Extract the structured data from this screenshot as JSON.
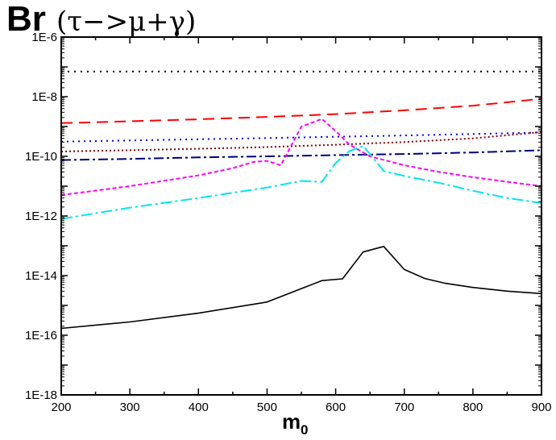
{
  "chart_data": {
    "type": "line",
    "title": "Br",
    "title_suffix": "(τ−>μ+γ)",
    "xlabel": "m",
    "xlabel_subscript": "0",
    "ylabel": "",
    "log_y": true,
    "xlim": [
      200,
      900
    ],
    "ylim": [
      1e-18,
      1e-06
    ],
    "x_ticks": [
      200,
      300,
      400,
      500,
      600,
      700,
      800,
      900
    ],
    "x_tick_labels": [
      "200",
      "300",
      "400",
      "500",
      "600",
      "700",
      "800",
      "900"
    ],
    "y_ticks": [
      1e-18,
      1e-16,
      1e-14,
      1e-12,
      1e-10,
      1e-08,
      1e-06
    ],
    "y_tick_labels": [
      "1E-18",
      "1E-16",
      "1E-14",
      "1E-12",
      "1E-10",
      "1E-8",
      "1E-6"
    ],
    "grid": false,
    "legend": "none",
    "series": [
      {
        "color": "#000000",
        "dash": "2,6",
        "width": 2,
        "x": [
          200,
          900
        ],
        "y": [
          7e-08,
          7e-08
        ]
      },
      {
        "color": "#ff0000",
        "dash": "14,8",
        "width": 2,
        "x": [
          200,
          300,
          400,
          500,
          600,
          700,
          800,
          900
        ],
        "y": [
          1.3e-09,
          1.5e-09,
          1.75e-09,
          2.1e-09,
          2.6e-09,
          3.5e-09,
          5e-09,
          8.5e-09
        ]
      },
      {
        "color": "#0000ff",
        "dash": "2,5",
        "width": 2,
        "x": [
          200,
          300,
          400,
          500,
          600,
          700,
          800,
          900
        ],
        "y": [
          3.1e-10,
          3.4e-10,
          3.75e-10,
          4.1e-10,
          4.55e-10,
          5e-10,
          5.6e-10,
          6.3e-10
        ]
      },
      {
        "color": "#8b0000",
        "dash": "2,3",
        "width": 2,
        "x": [
          200,
          300,
          400,
          500,
          600,
          700,
          800,
          900
        ],
        "y": [
          1.45e-10,
          1.6e-10,
          1.8e-10,
          2.05e-10,
          2.45e-10,
          3e-10,
          4e-10,
          6.5e-10
        ]
      },
      {
        "color": "#000080",
        "dash": "12,4,3,4",
        "width": 2,
        "x": [
          200,
          300,
          400,
          500,
          600,
          700,
          800,
          900
        ],
        "y": [
          7.5e-11,
          8.2e-11,
          9.2e-11,
          1e-10,
          1.1e-10,
          1.2e-10,
          1.35e-10,
          1.6e-10
        ]
      },
      {
        "color": "#ff00ff",
        "dash": "5,3",
        "width": 2,
        "x": [
          200,
          300,
          400,
          450,
          480,
          500,
          520,
          550,
          580,
          600,
          620,
          650,
          700,
          750,
          800,
          850,
          900
        ],
        "y": [
          5e-12,
          1e-11,
          2.3e-11,
          4e-11,
          6.5e-11,
          7e-11,
          5e-11,
          1e-09,
          1.8e-09,
          7e-10,
          2.5e-10,
          1e-10,
          5e-11,
          3e-11,
          2e-11,
          1.4e-11,
          1e-11
        ]
      },
      {
        "color": "#00e5ee",
        "dash": "14,4,3,4",
        "width": 2,
        "x": [
          200,
          300,
          400,
          500,
          550,
          580,
          600,
          620,
          640,
          650,
          670,
          700,
          750,
          800,
          850,
          900
        ],
        "y": [
          8e-13,
          1.9e-12,
          4e-12,
          9e-12,
          1.5e-11,
          1.4e-11,
          6e-11,
          1.5e-10,
          2.2e-10,
          1.2e-10,
          3.2e-11,
          2.2e-11,
          1.3e-11,
          7e-12,
          4e-12,
          2.7e-12
        ]
      },
      {
        "color": "#000000",
        "dash": "",
        "width": 1.6,
        "x": [
          200,
          300,
          400,
          500,
          580,
          610,
          640,
          670,
          700,
          730,
          760,
          800,
          850,
          900
        ],
        "y": [
          1.7e-16,
          2.8e-16,
          5.5e-16,
          1.3e-15,
          6.8e-15,
          7.8e-15,
          6.2e-14,
          9.5e-14,
          1.6e-14,
          8e-15,
          5.5e-15,
          4e-15,
          3e-15,
          2.5e-15
        ]
      }
    ]
  }
}
